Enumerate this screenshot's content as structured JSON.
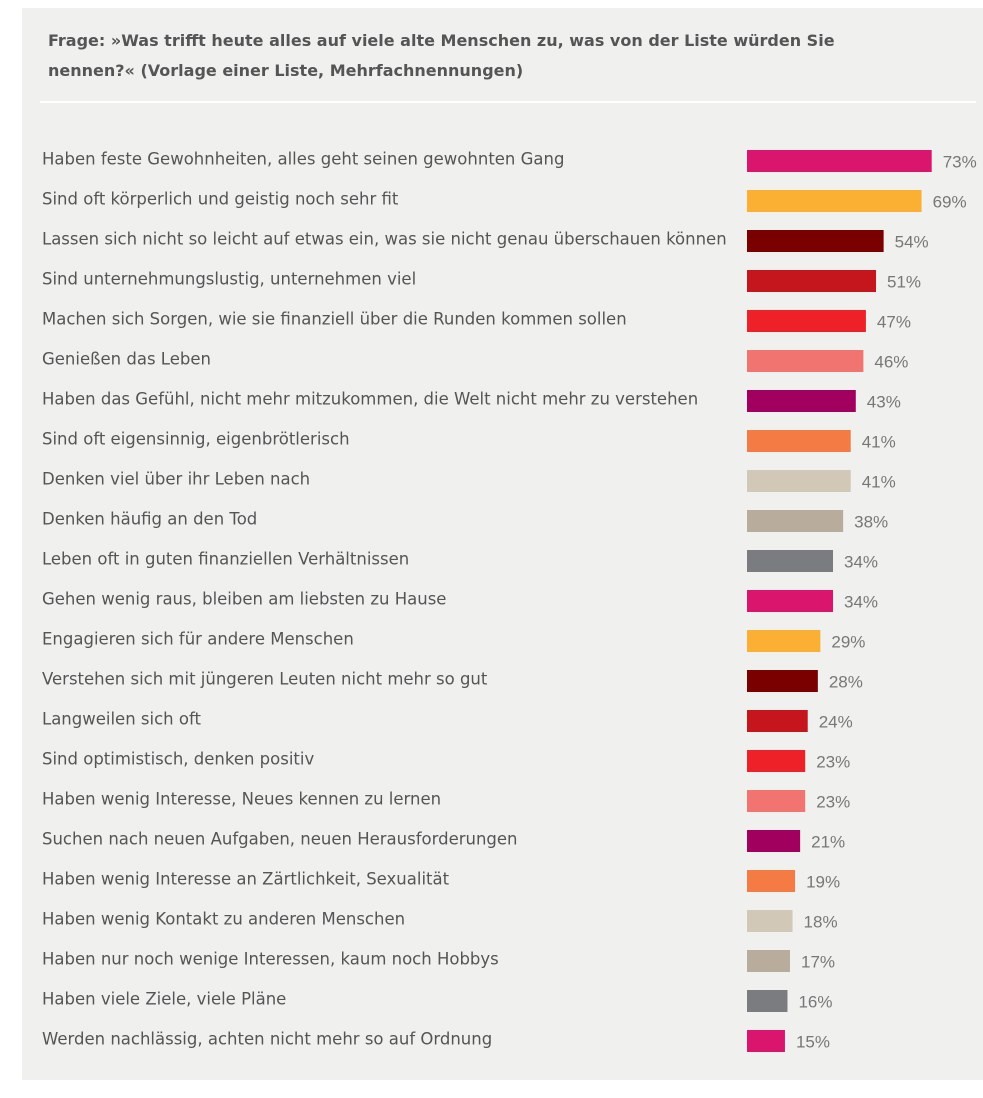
{
  "chart_data": {
    "type": "bar",
    "orientation": "horizontal",
    "title": "Frage: »Was trifft heute alles auf viele alte Menschen zu, was von der Liste würden Sie nennen?« (Vorlage einer Liste, Mehrfachnennungen)",
    "categories": [
      "Haben feste Gewohnheiten, alles geht seinen gewohnten Gang",
      "Sind oft körperlich und geistig noch sehr fit",
      "Lassen sich nicht so leicht auf etwas ein, was sie nicht genau überschauen können",
      "Sind unternehmungslustig, unternehmen viel",
      "Machen sich Sorgen, wie sie finanziell über die Runden kommen sollen",
      "Genießen das Leben",
      "Haben das Gefühl, nicht mehr mitzukommen, die Welt nicht mehr zu verstehen",
      "Sind oft eigensinnig, eigenbrötlerisch",
      "Denken viel über ihr Leben nach",
      "Denken häufig an den Tod",
      "Leben oft in guten finanziellen Verhältnissen",
      "Gehen wenig raus, bleiben am liebsten zu Hause",
      "Engagieren sich für andere Menschen",
      "Verstehen sich mit jüngeren Leuten nicht mehr so gut",
      "Langweilen sich oft",
      "Sind optimistisch, denken positiv",
      "Haben wenig Interesse, Neues kennen zu lernen",
      "Suchen nach neuen Aufgaben, neuen Herausforderungen",
      "Haben wenig Interesse an Zärtlichkeit, Sexualität",
      "Haben wenig Kontakt zu anderen Menschen",
      "Haben nur noch wenige Interessen, kaum noch Hobbys",
      "Haben viele Ziele, viele Pläne",
      "Werden nachlässig, achten nicht mehr so auf Ordnung"
    ],
    "values": [
      73,
      69,
      54,
      51,
      47,
      46,
      43,
      41,
      41,
      38,
      34,
      34,
      29,
      28,
      24,
      23,
      23,
      21,
      19,
      18,
      17,
      16,
      15
    ],
    "value_labels": [
      "73%",
      "69%",
      "54%",
      "51%",
      "47%",
      "46%",
      "43%",
      "41%",
      "41%",
      "38%",
      "34%",
      "34%",
      "29%",
      "28%",
      "24%",
      "23%",
      "23%",
      "21%",
      "19%",
      "18%",
      "17%",
      "16%",
      "15%"
    ],
    "colors": [
      "#d9156e",
      "#fbb034",
      "#7a0000",
      "#c4161c",
      "#ee2028",
      "#f27470",
      "#a1005f",
      "#f47c44",
      "#d2c8b8",
      "#b8ad9d",
      "#7b7c80",
      "#d9156e",
      "#fbb034",
      "#7a0000",
      "#c4161c",
      "#ee2028",
      "#f27470",
      "#a1005f",
      "#f47c44",
      "#d2c8b8",
      "#b8ad9d",
      "#7b7c80",
      "#d9156e"
    ]
  }
}
